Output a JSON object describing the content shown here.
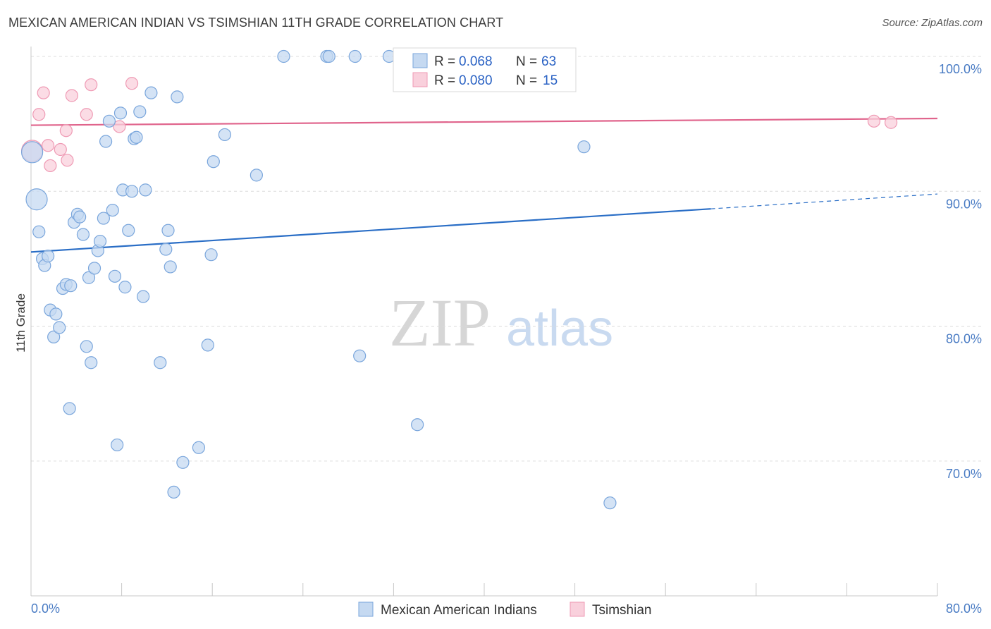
{
  "header": {
    "title": "MEXICAN AMERICAN INDIAN VS TSIMSHIAN 11TH GRADE CORRELATION CHART",
    "source": "Source: ZipAtlas.com"
  },
  "watermark": {
    "zip": "ZIP",
    "atlas": "atlas"
  },
  "colors": {
    "blue_fill": "#c5d9f1",
    "blue_stroke": "#7aa6dc",
    "blue_line": "#2a6ec6",
    "pink_fill": "#f9d0dc",
    "pink_stroke": "#ef9ab4",
    "pink_line": "#e0648c",
    "grid": "#dcdcdc",
    "axis_text": "#4a7cc4"
  },
  "legend": {
    "rows": [
      {
        "r_label": "R =",
        "r_value": "0.068",
        "n_label": "N =",
        "n_value": "63"
      },
      {
        "r_label": "R =",
        "r_value": "0.080",
        "n_label": "N =",
        "n_value": "15"
      }
    ]
  },
  "chart_data": {
    "type": "scatter",
    "title": "MEXICAN AMERICAN INDIAN VS TSIMSHIAN 11TH GRADE CORRELATION CHART",
    "xlabel": "",
    "ylabel": "11th Grade",
    "xlim": [
      0,
      80
    ],
    "ylim": [
      60,
      102
    ],
    "x_tick_labels": [
      "0.0%",
      "80.0%"
    ],
    "y_ticks": [
      70,
      80,
      90,
      100
    ],
    "y_tick_labels": [
      "70.0%",
      "80.0%",
      "90.0%",
      "100.0%"
    ],
    "grid": true,
    "legend_position": "top-center",
    "series": [
      {
        "name": "Mexican American Indians",
        "color": "blue",
        "r": 0.068,
        "n": 63,
        "trend": {
          "x": [
            0,
            60
          ],
          "y": [
            85.5,
            88.7
          ],
          "dashed_to_x": 80,
          "dashed_to_y": 89.8
        },
        "points": [
          {
            "x": 0.1,
            "y": 92.9,
            "big": true
          },
          {
            "x": 0.5,
            "y": 89.4,
            "big": true
          },
          {
            "x": 0.7,
            "y": 87.0
          },
          {
            "x": 1.0,
            "y": 85.0
          },
          {
            "x": 1.2,
            "y": 84.5
          },
          {
            "x": 1.5,
            "y": 85.2
          },
          {
            "x": 1.7,
            "y": 81.2
          },
          {
            "x": 2.0,
            "y": 79.2
          },
          {
            "x": 2.2,
            "y": 80.9
          },
          {
            "x": 2.5,
            "y": 79.9
          },
          {
            "x": 2.8,
            "y": 82.8
          },
          {
            "x": 3.1,
            "y": 83.1
          },
          {
            "x": 3.5,
            "y": 83.0
          },
          {
            "x": 3.4,
            "y": 73.9
          },
          {
            "x": 3.8,
            "y": 87.7
          },
          {
            "x": 4.1,
            "y": 88.3
          },
          {
            "x": 4.3,
            "y": 88.1
          },
          {
            "x": 4.6,
            "y": 86.8
          },
          {
            "x": 4.9,
            "y": 78.5
          },
          {
            "x": 5.1,
            "y": 83.6
          },
          {
            "x": 5.3,
            "y": 77.3
          },
          {
            "x": 5.6,
            "y": 84.3
          },
          {
            "x": 5.9,
            "y": 85.6
          },
          {
            "x": 6.1,
            "y": 86.3
          },
          {
            "x": 6.4,
            "y": 88.0
          },
          {
            "x": 6.6,
            "y": 93.7
          },
          {
            "x": 6.9,
            "y": 95.2
          },
          {
            "x": 7.2,
            "y": 88.6
          },
          {
            "x": 7.4,
            "y": 83.7
          },
          {
            "x": 7.6,
            "y": 71.2
          },
          {
            "x": 7.9,
            "y": 95.8
          },
          {
            "x": 8.1,
            "y": 90.1
          },
          {
            "x": 8.3,
            "y": 82.9
          },
          {
            "x": 8.6,
            "y": 87.1
          },
          {
            "x": 8.9,
            "y": 90.0
          },
          {
            "x": 9.1,
            "y": 93.9
          },
          {
            "x": 9.3,
            "y": 94.0
          },
          {
            "x": 9.6,
            "y": 95.9
          },
          {
            "x": 9.9,
            "y": 82.2
          },
          {
            "x": 10.1,
            "y": 90.1
          },
          {
            "x": 10.6,
            "y": 97.3
          },
          {
            "x": 11.4,
            "y": 77.3
          },
          {
            "x": 11.9,
            "y": 85.7
          },
          {
            "x": 12.1,
            "y": 87.1
          },
          {
            "x": 12.3,
            "y": 84.4
          },
          {
            "x": 12.6,
            "y": 67.7
          },
          {
            "x": 12.9,
            "y": 97.0
          },
          {
            "x": 13.4,
            "y": 69.9
          },
          {
            "x": 14.8,
            "y": 71.0
          },
          {
            "x": 15.6,
            "y": 78.6
          },
          {
            "x": 15.9,
            "y": 85.3
          },
          {
            "x": 16.1,
            "y": 92.2
          },
          {
            "x": 17.1,
            "y": 94.2
          },
          {
            "x": 19.9,
            "y": 91.2
          },
          {
            "x": 22.3,
            "y": 100.0
          },
          {
            "x": 26.1,
            "y": 100.0
          },
          {
            "x": 26.3,
            "y": 100.0
          },
          {
            "x": 28.6,
            "y": 100.0
          },
          {
            "x": 29.0,
            "y": 77.8
          },
          {
            "x": 31.6,
            "y": 100.0
          },
          {
            "x": 34.1,
            "y": 72.7
          },
          {
            "x": 48.8,
            "y": 93.3
          },
          {
            "x": 51.1,
            "y": 66.9
          }
        ]
      },
      {
        "name": "Tsimshian",
        "color": "pink",
        "r": 0.08,
        "n": 15,
        "trend": {
          "x": [
            0,
            80
          ],
          "y": [
            94.9,
            95.4
          ]
        },
        "points": [
          {
            "x": 0.1,
            "y": 93.0,
            "big": true
          },
          {
            "x": 0.7,
            "y": 95.7
          },
          {
            "x": 1.1,
            "y": 97.3
          },
          {
            "x": 1.5,
            "y": 93.4
          },
          {
            "x": 1.7,
            "y": 91.9
          },
          {
            "x": 2.6,
            "y": 93.1
          },
          {
            "x": 3.1,
            "y": 94.5
          },
          {
            "x": 3.2,
            "y": 92.3
          },
          {
            "x": 3.6,
            "y": 97.1
          },
          {
            "x": 4.9,
            "y": 95.7
          },
          {
            "x": 5.3,
            "y": 97.9
          },
          {
            "x": 7.8,
            "y": 94.8
          },
          {
            "x": 8.9,
            "y": 98.0
          },
          {
            "x": 74.4,
            "y": 95.2
          },
          {
            "x": 75.9,
            "y": 95.1
          }
        ]
      }
    ]
  }
}
